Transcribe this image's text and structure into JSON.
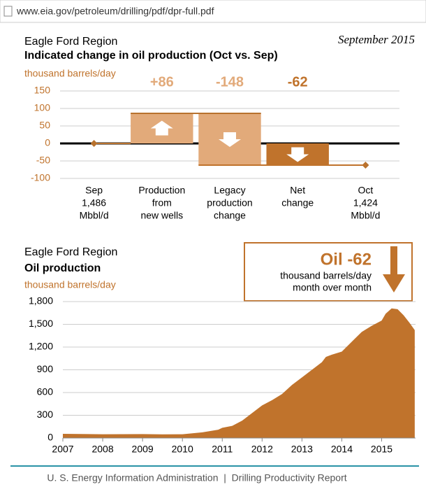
{
  "page": {
    "url": "www.eia.gov/petroleum/drilling/pdf/dpr-full.pdf",
    "date": "September 2015",
    "footer": "U. S. Energy Information Administration  |  Drilling Productivity Report"
  },
  "chart_data": [
    {
      "type": "waterfall",
      "region": "Eagle Ford Region",
      "title": "Indicated change in oil production (Oct vs. Sep)",
      "ylabel": "thousand barrels/day",
      "categories": [
        [
          "Sep",
          "1,486",
          "Mbbl/d"
        ],
        [
          "Production",
          "from",
          "new wells"
        ],
        [
          "Legacy",
          "production",
          "change"
        ],
        [
          "Net",
          "change"
        ],
        [
          "Oct",
          "1,424",
          "Mbbl/d"
        ]
      ],
      "values": [
        0,
        86,
        -148,
        -62,
        -62
      ],
      "value_labels": [
        null,
        "+86",
        "-148",
        "-62",
        null
      ],
      "colors": [
        "#b8722e",
        "#e2aa7a",
        "#e2aa7a",
        "#c0732c",
        "#b8722e"
      ],
      "ylim": [
        -100,
        150
      ],
      "yticks": [
        150,
        100,
        50,
        0,
        -50,
        -100
      ],
      "grid": true
    },
    {
      "type": "area",
      "region": "Eagle Ford Region",
      "title": "Oil production",
      "ylabel": "thousand barrels/day",
      "color": "#c0732c",
      "x": [
        2007,
        2008,
        2009,
        2009.5,
        2010,
        2010.5,
        2010.9,
        2011,
        2011.25,
        2011.5,
        2011.75,
        2012,
        2012.25,
        2012.5,
        2012.75,
        2013,
        2013.25,
        2013.5,
        2013.6,
        2013.75,
        2014,
        2014.25,
        2014.5,
        2014.75,
        2015,
        2015.1,
        2015.25,
        2015.4,
        2015.55,
        2015.7,
        2015.83
      ],
      "values": [
        55,
        50,
        52,
        48,
        50,
        75,
        110,
        135,
        160,
        230,
        330,
        430,
        500,
        580,
        700,
        800,
        900,
        1000,
        1070,
        1100,
        1140,
        1270,
        1400,
        1480,
        1550,
        1640,
        1710,
        1700,
        1620,
        1520,
        1424
      ],
      "xlim": [
        2007,
        2015.85
      ],
      "xticks": [
        2007,
        2008,
        2009,
        2010,
        2011,
        2012,
        2013,
        2014,
        2015
      ],
      "ylim": [
        0,
        1800
      ],
      "yticks": [
        0,
        300,
        600,
        900,
        {
          "value": 1200,
          "label": "1,200"
        },
        {
          "value": 1500,
          "label": "1,500"
        },
        {
          "value": 1800,
          "label": "1,800"
        }
      ],
      "grid": true,
      "annotation": {
        "title": "Oil -62",
        "lines": [
          "thousand barrels/day",
          "month over month"
        ]
      }
    }
  ]
}
